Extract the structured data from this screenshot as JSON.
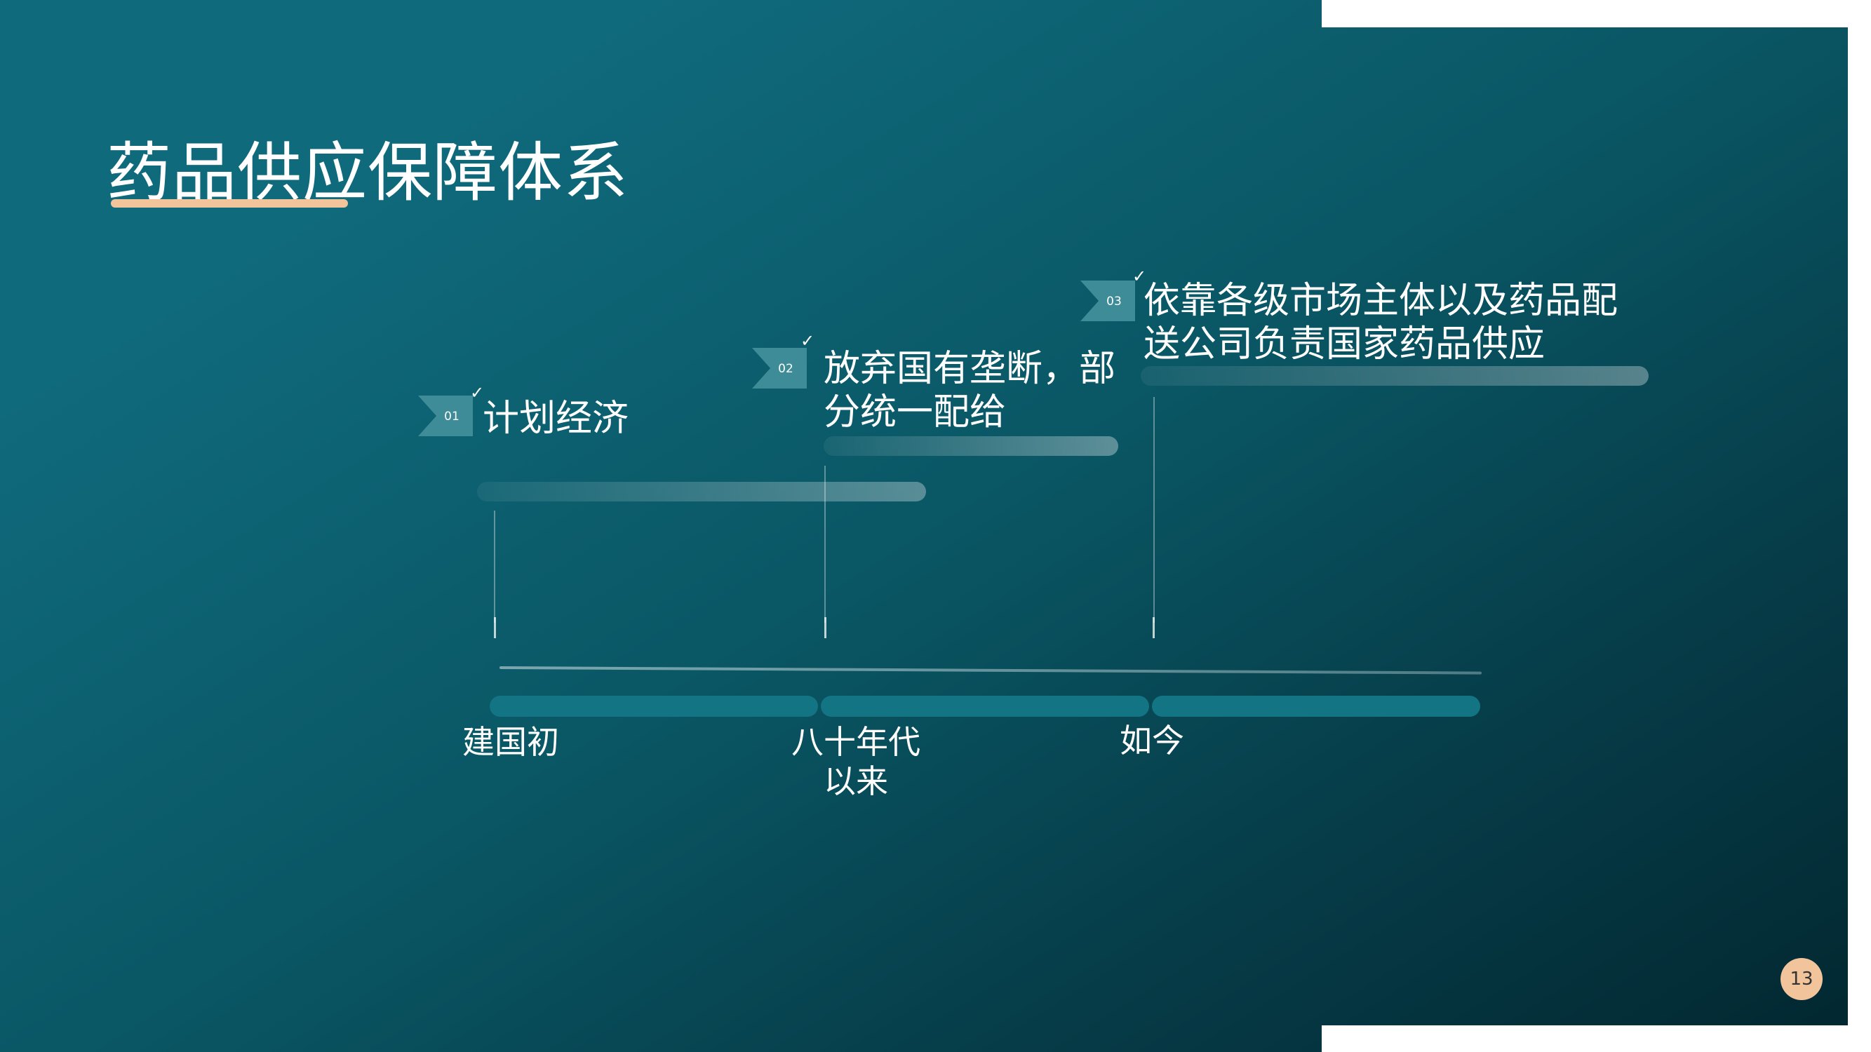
{
  "slide": {
    "title": "药品供应保障体系",
    "page_number": "13",
    "accent_color": "#f2c49b",
    "background_colors": [
      "#0f6a7c",
      "#022730"
    ]
  },
  "stages": [
    {
      "num": "01",
      "lines": [
        "计划经济"
      ]
    },
    {
      "num": "02",
      "lines": [
        "放弃国有垄断，部",
        "分统一配给"
      ]
    },
    {
      "num": "03",
      "lines": [
        "依靠各级市场主体以及药品配",
        "送公司负责国家药品供应"
      ]
    }
  ],
  "timeline": {
    "eras": [
      {
        "lines": [
          "建国初"
        ]
      },
      {
        "lines": [
          "八十年代",
          "以来"
        ]
      },
      {
        "lines": [
          "如今"
        ]
      }
    ]
  },
  "icons": {
    "badge": "chevron-badge-icon",
    "check": "checkmark-icon"
  }
}
